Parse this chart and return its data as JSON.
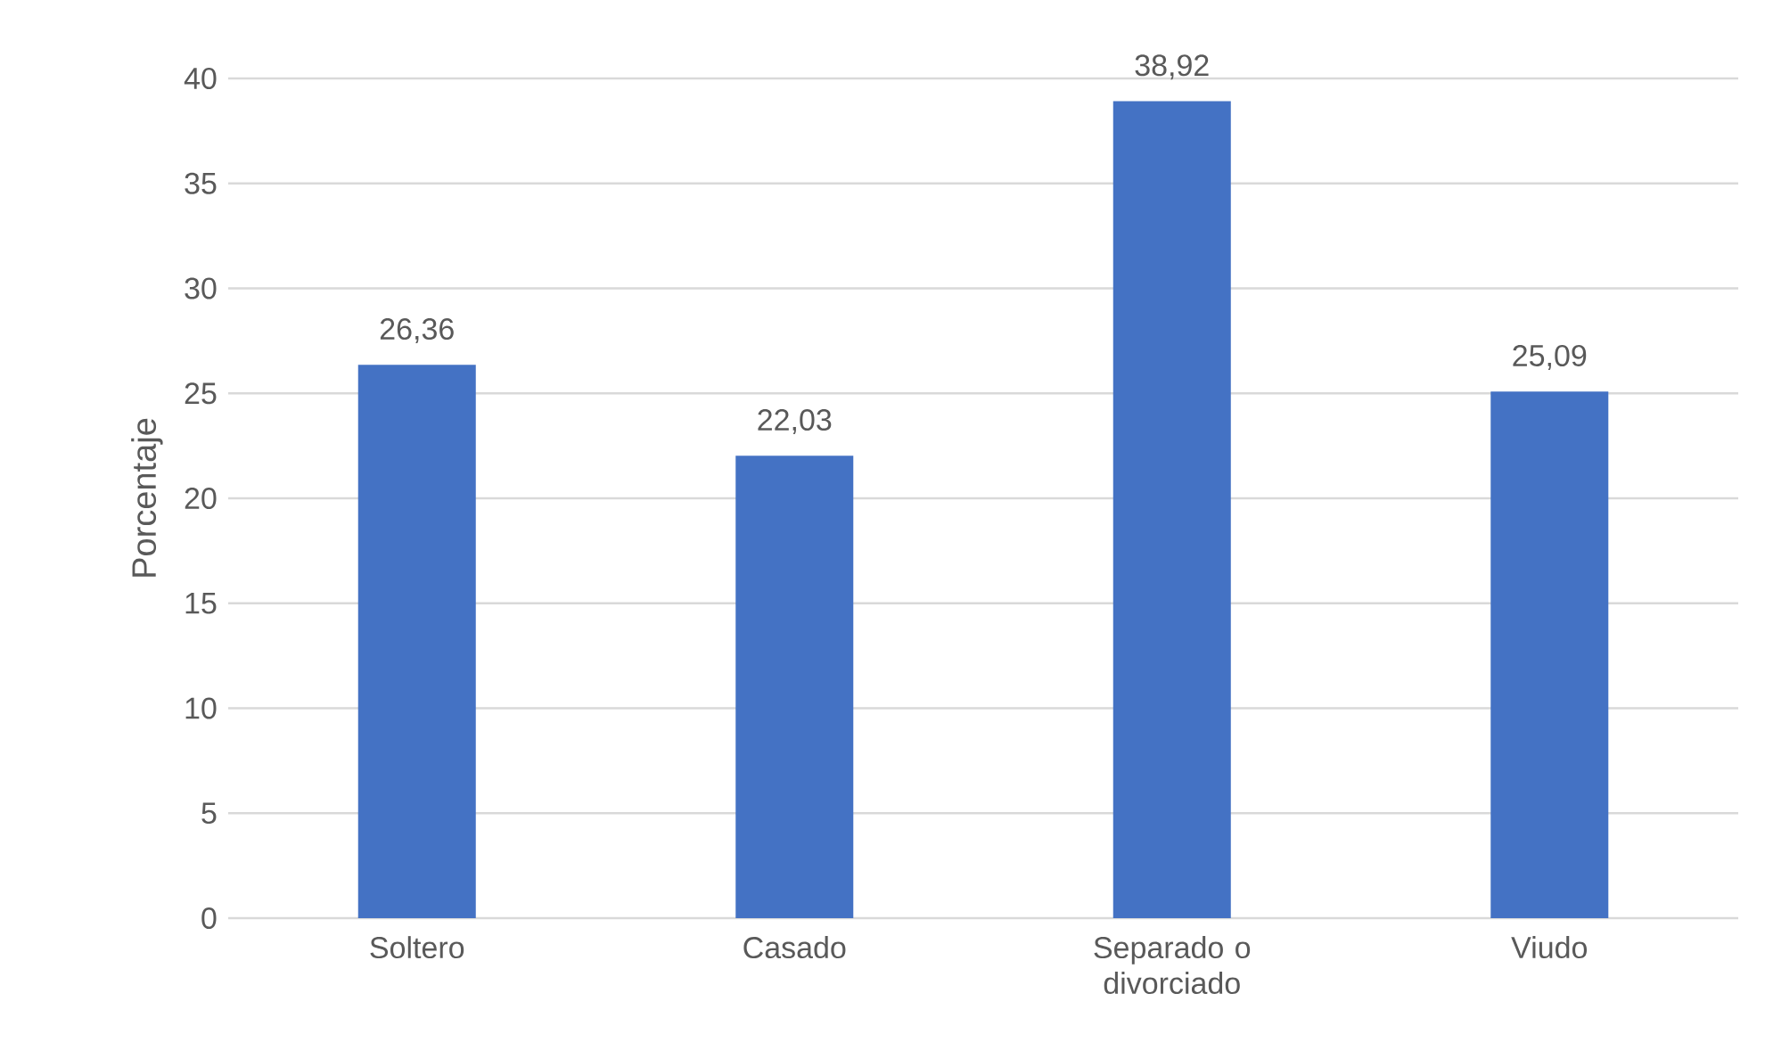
{
  "chart_data": {
    "type": "bar",
    "ylabel": "Porcentaje",
    "categories": [
      "Soltero",
      "Casado",
      "Separado o divorciado",
      "Viudo"
    ],
    "values": [
      26.36,
      22.03,
      38.92,
      25.09
    ],
    "value_labels": [
      "26,36",
      "22,03",
      "38,92",
      "25,09"
    ],
    "color": "#4472c4",
    "ylim": [
      0,
      40
    ],
    "yticks": [
      0,
      5,
      10,
      15,
      20,
      25,
      30,
      35,
      40
    ],
    "grid": "y"
  }
}
